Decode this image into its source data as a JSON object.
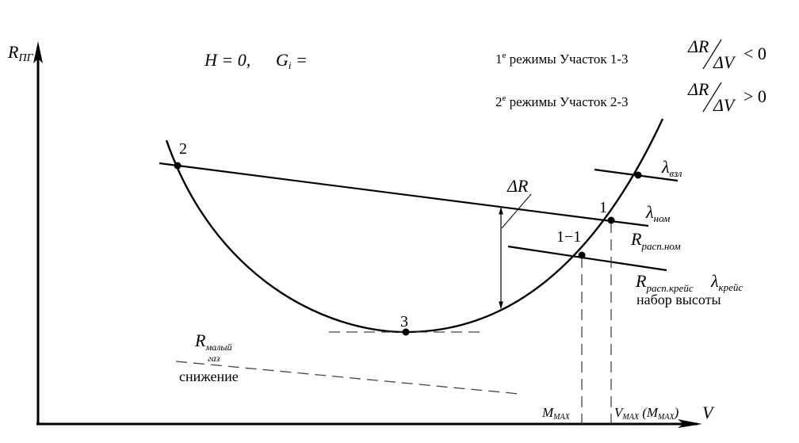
{
  "axes": {
    "y_label": "R",
    "y_sub": "ПГ",
    "x_label": "V"
  },
  "conditions": {
    "h": "H = 0,",
    "g": "G",
    "g_sub": "i",
    "g_eq": " ="
  },
  "legend": [
    {
      "num": "1",
      "sup": "е",
      "text": " режимы  Участок 1-3",
      "num_top": "ΔR",
      "den": "ΔV",
      "rel": "< 0"
    },
    {
      "num": "2",
      "sup": "е",
      "text": " режимы  Участок 2-3",
      "num_top": "ΔR",
      "den": "ΔV",
      "rel": "> 0"
    }
  ],
  "points": {
    "p1": "1",
    "p2": "2",
    "p3": "3",
    "p11": "1−1"
  },
  "labels": {
    "delta_r": "ΔR",
    "lambda": "λ",
    "lambda_vzl_sub": "взл",
    "lambda_nom_sub": "ном",
    "lambda_kreis_sub": "крейс",
    "r": "R",
    "r_rasp_nom_sub": "расп.ном",
    "r_rasp_kreis_sub": "расп.крейс",
    "climb": "набор высоты",
    "r_idle_sub": "малый",
    "r_idle_sub2": "газ",
    "descent": "снижение",
    "m": "M",
    "m_max_sub": "MAX",
    "v": "V",
    "v_max_sub": "MAX",
    "v_max_paren_open": " (M",
    "v_max_paren_sub": "MAX",
    "v_max_paren_close": ")"
  }
}
